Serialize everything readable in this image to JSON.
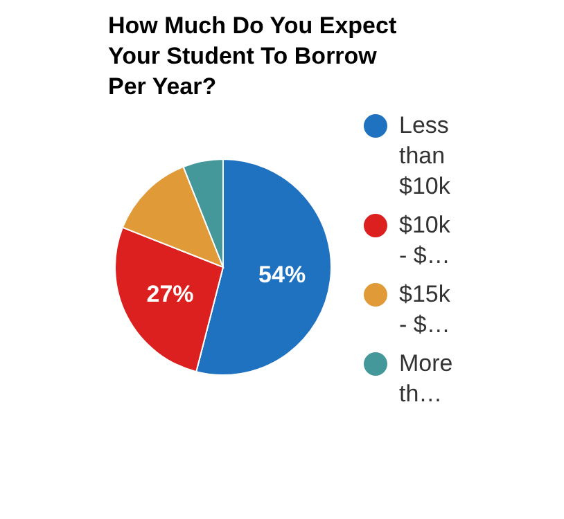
{
  "chart_data": {
    "type": "pie",
    "title": "How Much Do You Expect Your Student To Borrow Per Year?",
    "categories": [
      "Less than $10k",
      "$10k - $…",
      "$15k - $…",
      "More th…"
    ],
    "values": [
      54,
      27,
      13,
      6
    ],
    "colors": [
      "#1f72c0",
      "#dc1f1f",
      "#e09a37",
      "#45989a"
    ],
    "value_labels": [
      "54%",
      "27%",
      null,
      null
    ],
    "legend": "right"
  }
}
